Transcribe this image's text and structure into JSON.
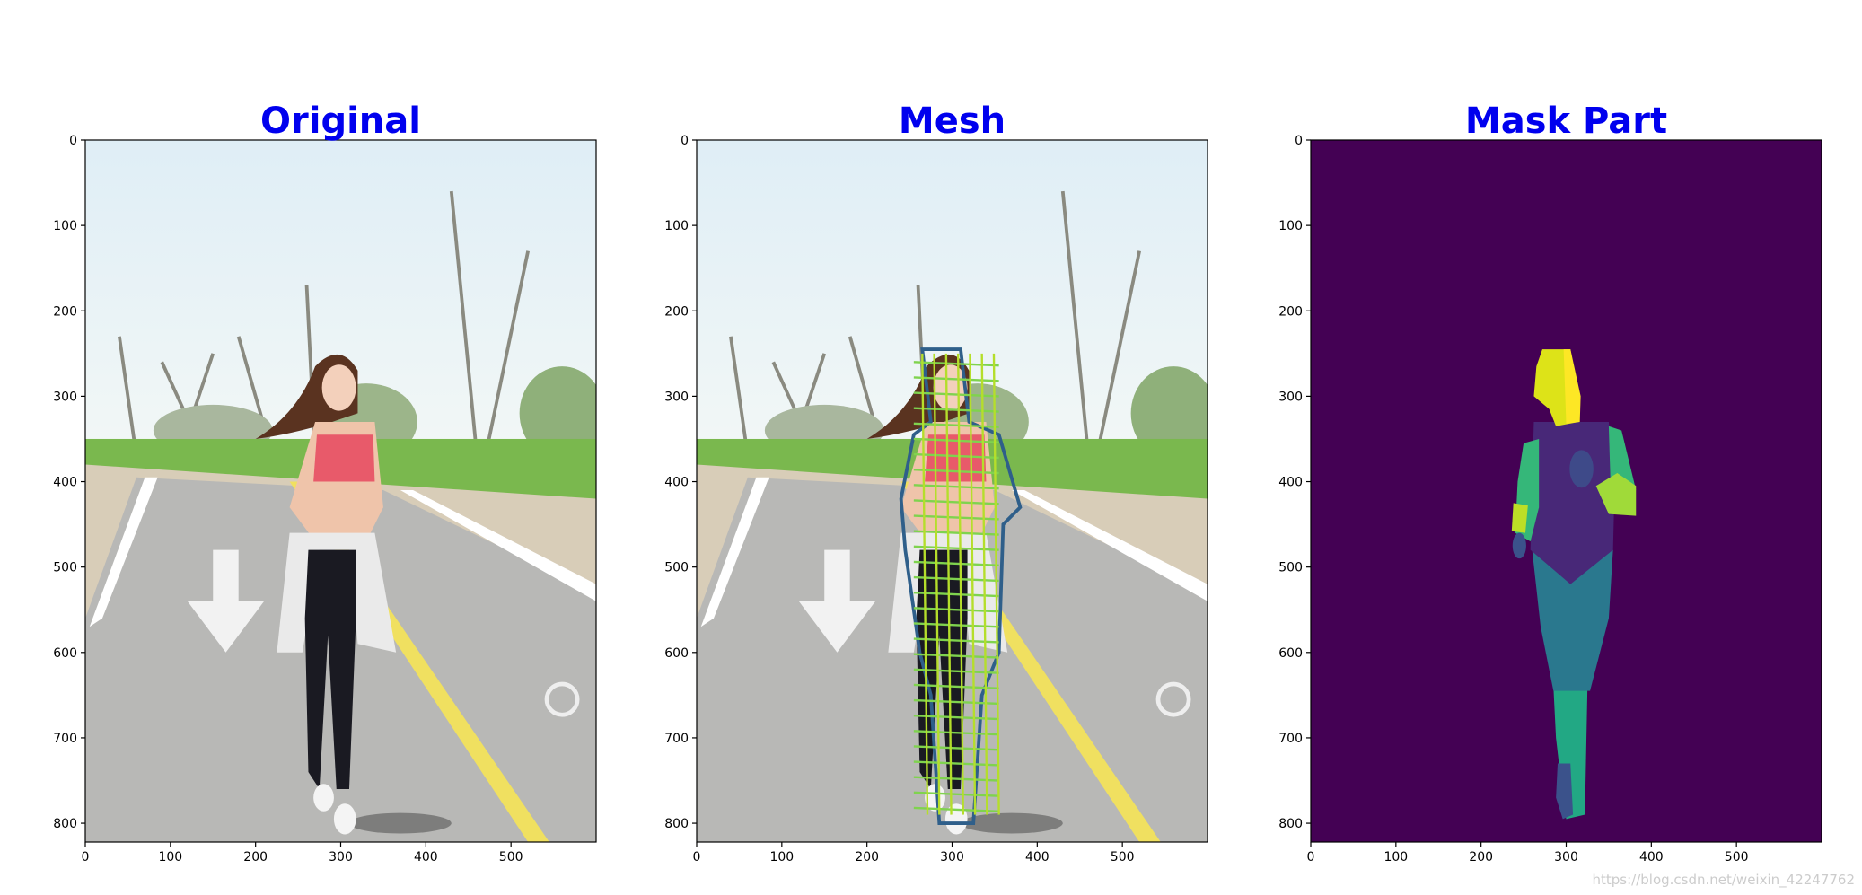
{
  "chart_data": [
    {
      "type": "image",
      "title": "Original",
      "xlim": [
        0,
        600
      ],
      "ylim": [
        822,
        0
      ],
      "xticks": [
        0,
        100,
        200,
        300,
        400,
        500
      ],
      "yticks": [
        0,
        100,
        200,
        300,
        400,
        500,
        600,
        700,
        800
      ]
    },
    {
      "type": "image",
      "title": "Mesh",
      "xlim": [
        0,
        600
      ],
      "ylim": [
        822,
        0
      ],
      "xticks": [
        0,
        100,
        200,
        300,
        400,
        500
      ],
      "yticks": [
        0,
        100,
        200,
        300,
        400,
        500,
        600,
        700,
        800
      ]
    },
    {
      "type": "image",
      "title": "Mask Part",
      "xlim": [
        0,
        600
      ],
      "ylim": [
        822,
        0
      ],
      "xticks": [
        0,
        100,
        200,
        300,
        400,
        500
      ],
      "yticks": [
        0,
        100,
        200,
        300,
        400,
        500,
        600,
        700,
        800
      ]
    }
  ],
  "watermark": "https://blog.csdn.net/weixin_42247762"
}
